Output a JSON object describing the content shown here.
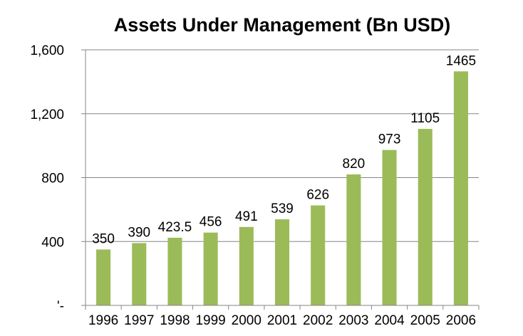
{
  "chart_data": {
    "type": "bar",
    "title": "Assets Under Management (Bn USD)",
    "xlabel": "",
    "ylabel": "",
    "categories": [
      "1996",
      "1997",
      "1998",
      "1999",
      "2000",
      "2001",
      "2002",
      "2003",
      "2004",
      "2005",
      "2006"
    ],
    "values": [
      350,
      390,
      423.5,
      456,
      491,
      539,
      626,
      820,
      973,
      1105,
      1465
    ],
    "data_labels": [
      "350",
      "390",
      "423.5",
      "456",
      "491",
      "539",
      "626",
      "820",
      "973",
      "1105",
      "1465"
    ],
    "ylim": [
      0,
      1600
    ],
    "yticks": [
      0,
      400,
      800,
      1200,
      1600
    ],
    "ytick_labels": [
      "'-",
      "400",
      "800",
      "1,200",
      "1,600"
    ],
    "grid": true,
    "legend": "none",
    "colors": {
      "bar": "#9bbb59",
      "grid": "#868686",
      "axis": "#868686"
    }
  }
}
